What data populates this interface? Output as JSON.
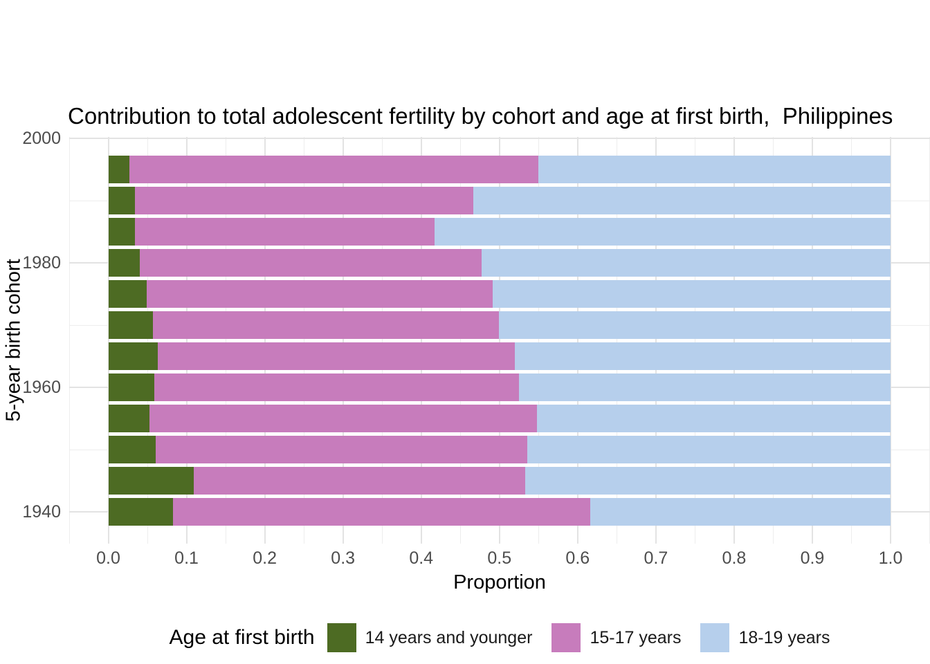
{
  "title": "Contribution to total adolescent fertility by cohort and age at first birth,  Philippines",
  "axes": {
    "x": {
      "label": "Proportion",
      "tick_labels": [
        "0.0",
        "0.1",
        "0.2",
        "0.3",
        "0.4",
        "0.5",
        "0.6",
        "0.7",
        "0.8",
        "0.9",
        "1.0"
      ],
      "tick_values": [
        0,
        0.1,
        0.2,
        0.3,
        0.4,
        0.5,
        0.6,
        0.7,
        0.8,
        0.9,
        1.0
      ],
      "minor_values": [
        -0.05,
        0.05,
        0.15,
        0.25,
        0.35,
        0.45,
        0.55,
        0.65,
        0.75,
        0.85,
        0.95,
        1.05
      ],
      "range": [
        -0.05,
        1.05
      ]
    },
    "y": {
      "label": "5-year birth cohort",
      "tick_labels": [
        "2000",
        "1980",
        "1960",
        "1940"
      ],
      "tick_values": [
        2000,
        1980,
        1960,
        1940
      ],
      "minor_values": [
        1990,
        1970,
        1950
      ]
    }
  },
  "legend": {
    "title": "Age at first birth",
    "items": [
      {
        "label": "14 years and younger",
        "color": "#4d6b23"
      },
      {
        "label": "15-17 years",
        "color": "#c77cbc"
      },
      {
        "label": "18-19 years",
        "color": "#b6cfec"
      }
    ]
  },
  "colors": {
    "green": "#4d6b23",
    "pink": "#c77cbc",
    "blue": "#b6cfec",
    "grid_major": "#e3e3e3",
    "grid_minor": "#ededed",
    "tick_text": "#4d4d4d",
    "background": "#ffffff"
  },
  "chart_data": {
    "type": "bar",
    "orientation": "horizontal",
    "stacked": true,
    "title": "Contribution to total adolescent fertility by cohort and age at first birth,  Philippines",
    "xlabel": "Proportion",
    "ylabel": "5-year birth cohort",
    "xlim": [
      0,
      1
    ],
    "grid": true,
    "legend_position": "bottom",
    "categories": [
      1995,
      1990,
      1985,
      1980,
      1975,
      1970,
      1965,
      1960,
      1955,
      1950,
      1945,
      1940
    ],
    "series": [
      {
        "name": "14 years and younger",
        "color": "#4d6b23",
        "values": [
          0.027,
          0.034,
          0.034,
          0.04,
          0.049,
          0.057,
          0.063,
          0.059,
          0.053,
          0.061,
          0.109,
          0.083
        ]
      },
      {
        "name": "15-17 years",
        "color": "#c77cbc",
        "values": [
          0.523,
          0.433,
          0.383,
          0.437,
          0.442,
          0.442,
          0.457,
          0.466,
          0.495,
          0.475,
          0.424,
          0.533
        ]
      },
      {
        "name": "18-19 years",
        "color": "#b6cfec",
        "values": [
          0.45,
          0.533,
          0.583,
          0.523,
          0.509,
          0.501,
          0.48,
          0.475,
          0.452,
          0.464,
          0.467,
          0.384
        ]
      }
    ]
  }
}
